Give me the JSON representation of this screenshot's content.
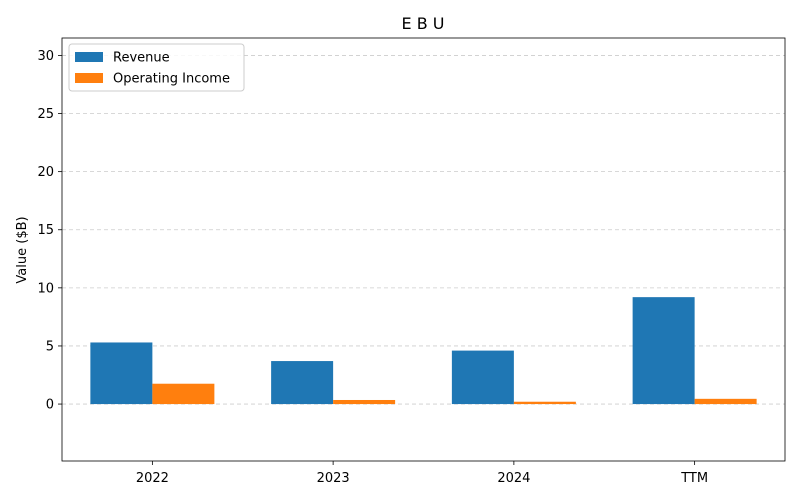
{
  "chart_data": {
    "type": "bar",
    "title": "E B U",
    "xlabel": "",
    "ylabel": "Value ($B)",
    "categories": [
      "2022",
      "2023",
      "2024",
      "TTM"
    ],
    "series": [
      {
        "name": "Revenue",
        "values": [
          5.3,
          3.7,
          4.6,
          9.2
        ],
        "color": "#1f77b4"
      },
      {
        "name": "Operating Income",
        "values": [
          1.75,
          0.35,
          0.2,
          0.45
        ],
        "color": "#ff7f0e"
      }
    ],
    "ylim": [
      -4.9,
      31.5
    ],
    "yticks": [
      0,
      5,
      10,
      15,
      20,
      25,
      30
    ],
    "grid": "y-dashed",
    "legend_position": "top-left"
  }
}
